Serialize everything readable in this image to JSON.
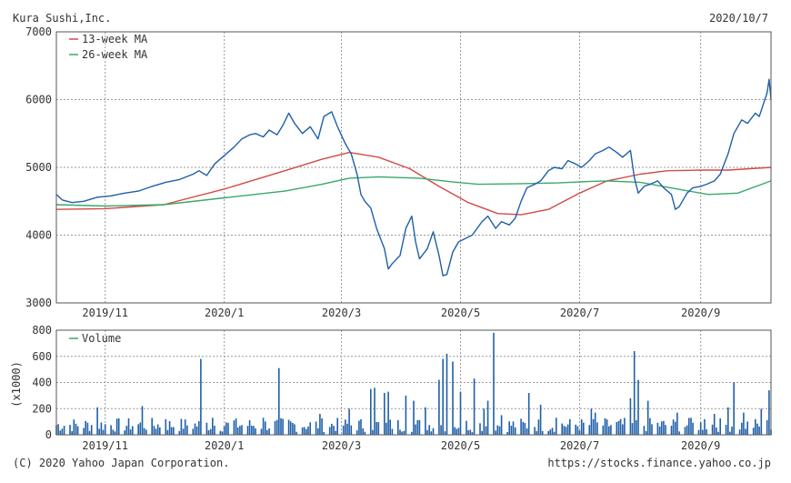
{
  "header": {
    "company": "Kura Sushi,Inc.",
    "date": "2020/10/7"
  },
  "footer": {
    "copyright": "(C) 2020 Yahoo Japan Corporation.",
    "url": "https://stocks.finance.yahoo.co.jp"
  },
  "colors": {
    "price": "#1f5fa8",
    "ma13": "#d24a4a",
    "ma26": "#3aa86b",
    "volume": "#1f5fa8",
    "frame": "#555555",
    "grid": "#9a9a9a"
  },
  "chart_data": [
    {
      "type": "line",
      "panel": "price",
      "xlim": [
        "2019-10-07",
        "2020-10-07"
      ],
      "x_tick_labels": [
        {
          "date": "2019-11-01",
          "label": "2019/11"
        },
        {
          "date": "2020-01-01",
          "label": "2020/1"
        },
        {
          "date": "2020-03-01",
          "label": "2020/3"
        },
        {
          "date": "2020-05-01",
          "label": "2020/5"
        },
        {
          "date": "2020-07-01",
          "label": "2020/7"
        },
        {
          "date": "2020-09-01",
          "label": "2020/9"
        }
      ],
      "ylim": [
        3000,
        7000
      ],
      "y_ticks": [
        3000,
        4000,
        5000,
        6000,
        7000
      ],
      "grid": true,
      "legend": "top-left",
      "series": [
        {
          "name": "price",
          "points": [
            [
              "2019-10-07",
              4600
            ],
            [
              "2019-10-10",
              4520
            ],
            [
              "2019-10-15",
              4480
            ],
            [
              "2019-10-21",
              4500
            ],
            [
              "2019-10-28",
              4560
            ],
            [
              "2019-11-04",
              4580
            ],
            [
              "2019-11-11",
              4620
            ],
            [
              "2019-11-18",
              4650
            ],
            [
              "2019-11-25",
              4720
            ],
            [
              "2019-12-02",
              4780
            ],
            [
              "2019-12-09",
              4820
            ],
            [
              "2019-12-16",
              4900
            ],
            [
              "2019-12-19",
              4950
            ],
            [
              "2019-12-23",
              4880
            ],
            [
              "2019-12-27",
              5050
            ],
            [
              "2020-01-06",
              5300
            ],
            [
              "2020-01-10",
              5420
            ],
            [
              "2020-01-14",
              5480
            ],
            [
              "2020-01-17",
              5500
            ],
            [
              "2020-01-21",
              5450
            ],
            [
              "2020-01-24",
              5550
            ],
            [
              "2020-01-28",
              5480
            ],
            [
              "2020-01-31",
              5620
            ],
            [
              "2020-02-03",
              5800
            ],
            [
              "2020-02-06",
              5650
            ],
            [
              "2020-02-10",
              5500
            ],
            [
              "2020-02-14",
              5600
            ],
            [
              "2020-02-18",
              5420
            ],
            [
              "2020-02-21",
              5750
            ],
            [
              "2020-02-25",
              5820
            ],
            [
              "2020-02-28",
              5600
            ],
            [
              "2020-03-03",
              5350
            ],
            [
              "2020-03-06",
              5200
            ],
            [
              "2020-03-09",
              4900
            ],
            [
              "2020-03-11",
              4600
            ],
            [
              "2020-03-13",
              4500
            ],
            [
              "2020-03-16",
              4400
            ],
            [
              "2020-03-19",
              4100
            ],
            [
              "2020-03-23",
              3800
            ],
            [
              "2020-03-25",
              3500
            ],
            [
              "2020-03-27",
              3580
            ],
            [
              "2020-03-31",
              3700
            ],
            [
              "2020-04-03",
              4100
            ],
            [
              "2020-04-06",
              4280
            ],
            [
              "2020-04-08",
              3900
            ],
            [
              "2020-04-10",
              3650
            ],
            [
              "2020-04-14",
              3800
            ],
            [
              "2020-04-17",
              4050
            ],
            [
              "2020-04-20",
              3700
            ],
            [
              "2020-04-22",
              3400
            ],
            [
              "2020-04-24",
              3420
            ],
            [
              "2020-04-27",
              3750
            ],
            [
              "2020-04-30",
              3900
            ],
            [
              "2020-05-07",
              4000
            ],
            [
              "2020-05-12",
              4200
            ],
            [
              "2020-05-15",
              4280
            ],
            [
              "2020-05-19",
              4100
            ],
            [
              "2020-05-22",
              4200
            ],
            [
              "2020-05-26",
              4150
            ],
            [
              "2020-05-29",
              4250
            ],
            [
              "2020-06-01",
              4500
            ],
            [
              "2020-06-04",
              4700
            ],
            [
              "2020-06-08",
              4750
            ],
            [
              "2020-06-11",
              4800
            ],
            [
              "2020-06-15",
              4950
            ],
            [
              "2020-06-18",
              5000
            ],
            [
              "2020-06-22",
              4980
            ],
            [
              "2020-06-25",
              5100
            ],
            [
              "2020-06-29",
              5050
            ],
            [
              "2020-07-02",
              5000
            ],
            [
              "2020-07-06",
              5100
            ],
            [
              "2020-07-09",
              5200
            ],
            [
              "2020-07-13",
              5250
            ],
            [
              "2020-07-16",
              5300
            ],
            [
              "2020-07-20",
              5220
            ],
            [
              "2020-07-23",
              5150
            ],
            [
              "2020-07-27",
              5250
            ],
            [
              "2020-07-29",
              4850
            ],
            [
              "2020-07-31",
              4620
            ],
            [
              "2020-08-03",
              4720
            ],
            [
              "2020-08-06",
              4750
            ],
            [
              "2020-08-10",
              4800
            ],
            [
              "2020-08-13",
              4700
            ],
            [
              "2020-08-17",
              4600
            ],
            [
              "2020-08-19",
              4380
            ],
            [
              "2020-08-21",
              4420
            ],
            [
              "2020-08-25",
              4620
            ],
            [
              "2020-08-28",
              4700
            ],
            [
              "2020-09-01",
              4720
            ],
            [
              "2020-09-04",
              4750
            ],
            [
              "2020-09-08",
              4800
            ],
            [
              "2020-09-11",
              4900
            ],
            [
              "2020-09-15",
              5200
            ],
            [
              "2020-09-18",
              5500
            ],
            [
              "2020-09-22",
              5700
            ],
            [
              "2020-09-25",
              5650
            ],
            [
              "2020-09-29",
              5800
            ],
            [
              "2020-10-01",
              5750
            ],
            [
              "2020-10-05",
              6100
            ],
            [
              "2020-10-06",
              6300
            ],
            [
              "2020-10-07",
              6000
            ]
          ]
        },
        {
          "name": "13-week MA",
          "points": [
            [
              "2019-10-07",
              4380
            ],
            [
              "2019-11-01",
              4390
            ],
            [
              "2019-12-01",
              4450
            ],
            [
              "2020-01-01",
              4680
            ],
            [
              "2020-02-01",
              4950
            ],
            [
              "2020-02-20",
              5120
            ],
            [
              "2020-03-05",
              5220
            ],
            [
              "2020-03-20",
              5150
            ],
            [
              "2020-04-05",
              4980
            ],
            [
              "2020-04-20",
              4720
            ],
            [
              "2020-05-05",
              4480
            ],
            [
              "2020-05-20",
              4320
            ],
            [
              "2020-06-01",
              4300
            ],
            [
              "2020-06-15",
              4380
            ],
            [
              "2020-07-01",
              4620
            ],
            [
              "2020-07-15",
              4800
            ],
            [
              "2020-08-01",
              4900
            ],
            [
              "2020-08-15",
              4950
            ],
            [
              "2020-09-01",
              4960
            ],
            [
              "2020-09-15",
              4960
            ],
            [
              "2020-10-07",
              5000
            ]
          ]
        },
        {
          "name": "26-week MA",
          "points": [
            [
              "2019-10-07",
              4450
            ],
            [
              "2019-11-01",
              4430
            ],
            [
              "2019-12-01",
              4450
            ],
            [
              "2020-01-01",
              4550
            ],
            [
              "2020-02-01",
              4650
            ],
            [
              "2020-02-20",
              4750
            ],
            [
              "2020-03-05",
              4840
            ],
            [
              "2020-03-20",
              4860
            ],
            [
              "2020-04-10",
              4840
            ],
            [
              "2020-04-25",
              4790
            ],
            [
              "2020-05-10",
              4750
            ],
            [
              "2020-06-01",
              4760
            ],
            [
              "2020-06-20",
              4770
            ],
            [
              "2020-07-05",
              4790
            ],
            [
              "2020-07-15",
              4800
            ],
            [
              "2020-08-01",
              4780
            ],
            [
              "2020-08-20",
              4680
            ],
            [
              "2020-09-05",
              4600
            ],
            [
              "2020-09-20",
              4620
            ],
            [
              "2020-10-07",
              4800
            ]
          ]
        }
      ],
      "legend_entries": [
        "13-week MA",
        "26-week MA"
      ]
    },
    {
      "type": "bar",
      "panel": "volume",
      "xlim": [
        "2019-10-07",
        "2020-10-07"
      ],
      "x_tick_labels": [
        {
          "date": "2019-11-01",
          "label": "2019/11"
        },
        {
          "date": "2020-01-01",
          "label": "2020/1"
        },
        {
          "date": "2020-03-01",
          "label": "2020/3"
        },
        {
          "date": "2020-05-01",
          "label": "2020/5"
        },
        {
          "date": "2020-07-01",
          "label": "2020/7"
        },
        {
          "date": "2020-09-01",
          "label": "2020/9"
        }
      ],
      "ylabel": "(x1000)",
      "ylim": [
        0,
        800
      ],
      "y_ticks": [
        0,
        200,
        400,
        600,
        800
      ],
      "grid": true,
      "legend": "top-left",
      "series": [
        {
          "name": "Volume",
          "spikes": [
            [
              "2019-10-28",
              210
            ],
            [
              "2019-11-20",
              220
            ],
            [
              "2019-12-02",
              120
            ],
            [
              "2019-12-20",
              580
            ],
            [
              "2019-12-26",
              130
            ],
            [
              "2020-01-06",
              110
            ],
            [
              "2020-01-21",
              130
            ],
            [
              "2020-01-29",
              510
            ],
            [
              "2020-02-19",
              160
            ],
            [
              "2020-03-05",
              200
            ],
            [
              "2020-03-16",
              350
            ],
            [
              "2020-03-18",
              360
            ],
            [
              "2020-03-23",
              320
            ],
            [
              "2020-03-25",
              330
            ],
            [
              "2020-04-03",
              300
            ],
            [
              "2020-04-07",
              260
            ],
            [
              "2020-04-13",
              210
            ],
            [
              "2020-04-20",
              420
            ],
            [
              "2020-04-22",
              580
            ],
            [
              "2020-04-24",
              620
            ],
            [
              "2020-04-27",
              560
            ],
            [
              "2020-05-01",
              330
            ],
            [
              "2020-05-08",
              430
            ],
            [
              "2020-05-13",
              200
            ],
            [
              "2020-05-15",
              260
            ],
            [
              "2020-05-18",
              780
            ],
            [
              "2020-05-22",
              150
            ],
            [
              "2020-06-05",
              320
            ],
            [
              "2020-06-11",
              230
            ],
            [
              "2020-06-19",
              130
            ],
            [
              "2020-07-07",
              200
            ],
            [
              "2020-07-09",
              170
            ],
            [
              "2020-07-27",
              280
            ],
            [
              "2020-07-29",
              640
            ],
            [
              "2020-07-31",
              420
            ],
            [
              "2020-08-05",
              260
            ],
            [
              "2020-08-20",
              170
            ],
            [
              "2020-08-27",
              130
            ],
            [
              "2020-09-03",
              120
            ],
            [
              "2020-09-08",
              160
            ],
            [
              "2020-09-15",
              210
            ],
            [
              "2020-09-18",
              400
            ],
            [
              "2020-09-23",
              170
            ],
            [
              "2020-10-02",
              200
            ],
            [
              "2020-10-06",
              340
            ]
          ]
        }
      ],
      "legend_entries": [
        "Volume"
      ]
    }
  ]
}
